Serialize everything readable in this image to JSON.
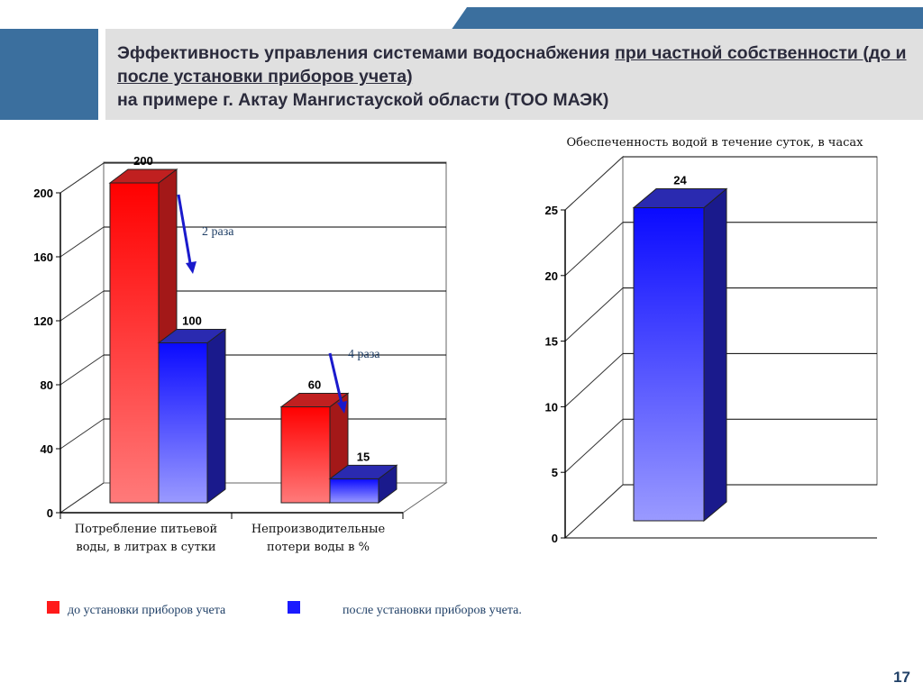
{
  "title": {
    "part1": "Эффективность управления системами водоснабжения ",
    "part2": "при частной собственности (до и после установки приборов учета)",
    "part3": "на примере г. Актау  Мангистауской области (ТОО МАЭК)"
  },
  "colors": {
    "before": "#ff1a1a",
    "after": "#1a1aff",
    "header_blue": "#3b6f9e",
    "annotation_blue": "#1f3f66"
  },
  "chart_data": [
    {
      "type": "bar",
      "title": "",
      "categories": [
        "Потребление питьевой воды, в литрах в сутки",
        "Непроизводительные потери воды в %"
      ],
      "series": [
        {
          "name": "до установки приборов учета",
          "values": [
            200,
            60
          ]
        },
        {
          "name": "после установки приборов учета.",
          "values": [
            100,
            15
          ]
        }
      ],
      "ylim": [
        0,
        200
      ],
      "yticks": [
        0,
        40,
        80,
        120,
        160,
        200
      ],
      "grid": true,
      "data_labels": [
        "200",
        "60",
        "100",
        "15"
      ],
      "annotations": [
        "2 раза",
        "4 раза"
      ]
    },
    {
      "type": "bar",
      "title": "Обеспеченность водой в течение суток, в часах",
      "categories": [
        ""
      ],
      "series": [
        {
          "values": [
            24
          ]
        }
      ],
      "ylim": [
        0,
        25
      ],
      "yticks": [
        0,
        5,
        10,
        15,
        20,
        25
      ],
      "grid": true,
      "data_labels": [
        "24"
      ]
    }
  ],
  "legend": [
    {
      "label": "до установки приборов учета",
      "color": "#ff1a1a"
    },
    {
      "label": "после установки приборов учета.",
      "color": "#1a1aff"
    }
  ],
  "page_number": "17"
}
